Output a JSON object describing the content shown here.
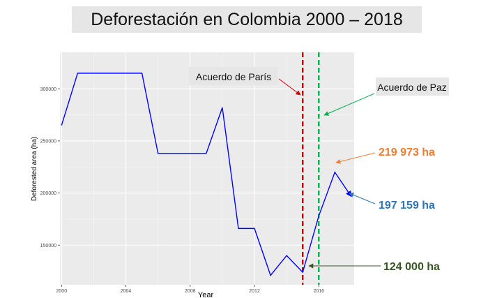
{
  "chart_data": {
    "type": "line",
    "title": "Deforestación en Colombia 2000 – 2018",
    "xlabel": "Year",
    "ylabel": "Deforested area (ha)",
    "xlim": [
      1999.9,
      2018.2
    ],
    "ylim": [
      112000,
      335000
    ],
    "x_ticks": [
      2000,
      2004,
      2008,
      2012,
      2016
    ],
    "y_ticks": [
      150000,
      200000,
      250000,
      300000
    ],
    "y_tick_labels": [
      "150000",
      "200000",
      "250000",
      "300000"
    ],
    "grid": true,
    "line_color": "#0000ff",
    "series": [
      {
        "x": [
          2000,
          2001,
          2002,
          2003,
          2004,
          2005,
          2006,
          2007,
          2008,
          2009,
          2010,
          2011,
          2012,
          2013,
          2014,
          2015,
          2016,
          2017,
          2018
        ],
        "values": [
          265000,
          315000,
          315000,
          315000,
          315000,
          315000,
          238000,
          238000,
          238000,
          238000,
          282000,
          166000,
          166000,
          121000,
          140000,
          124000,
          178000,
          219973,
          197159
        ]
      }
    ],
    "vlines": [
      {
        "x": 2015,
        "color": "#cc0000",
        "style": "dashed",
        "label": "Acuerdo de París"
      },
      {
        "x": 2016,
        "color": "#00b050",
        "style": "dashed",
        "label": "Acuerdo de Paz"
      }
    ],
    "annotations": [
      {
        "text": "219 973 ha",
        "color": "#ed7d31",
        "x": 2017,
        "y": 219973
      },
      {
        "text": "197 159 ha",
        "color": "#2e75b6",
        "x": 2018,
        "y": 197159
      },
      {
        "text": "124 000 ha",
        "color": "#375623",
        "x": 2015,
        "y": 124000
      }
    ]
  }
}
